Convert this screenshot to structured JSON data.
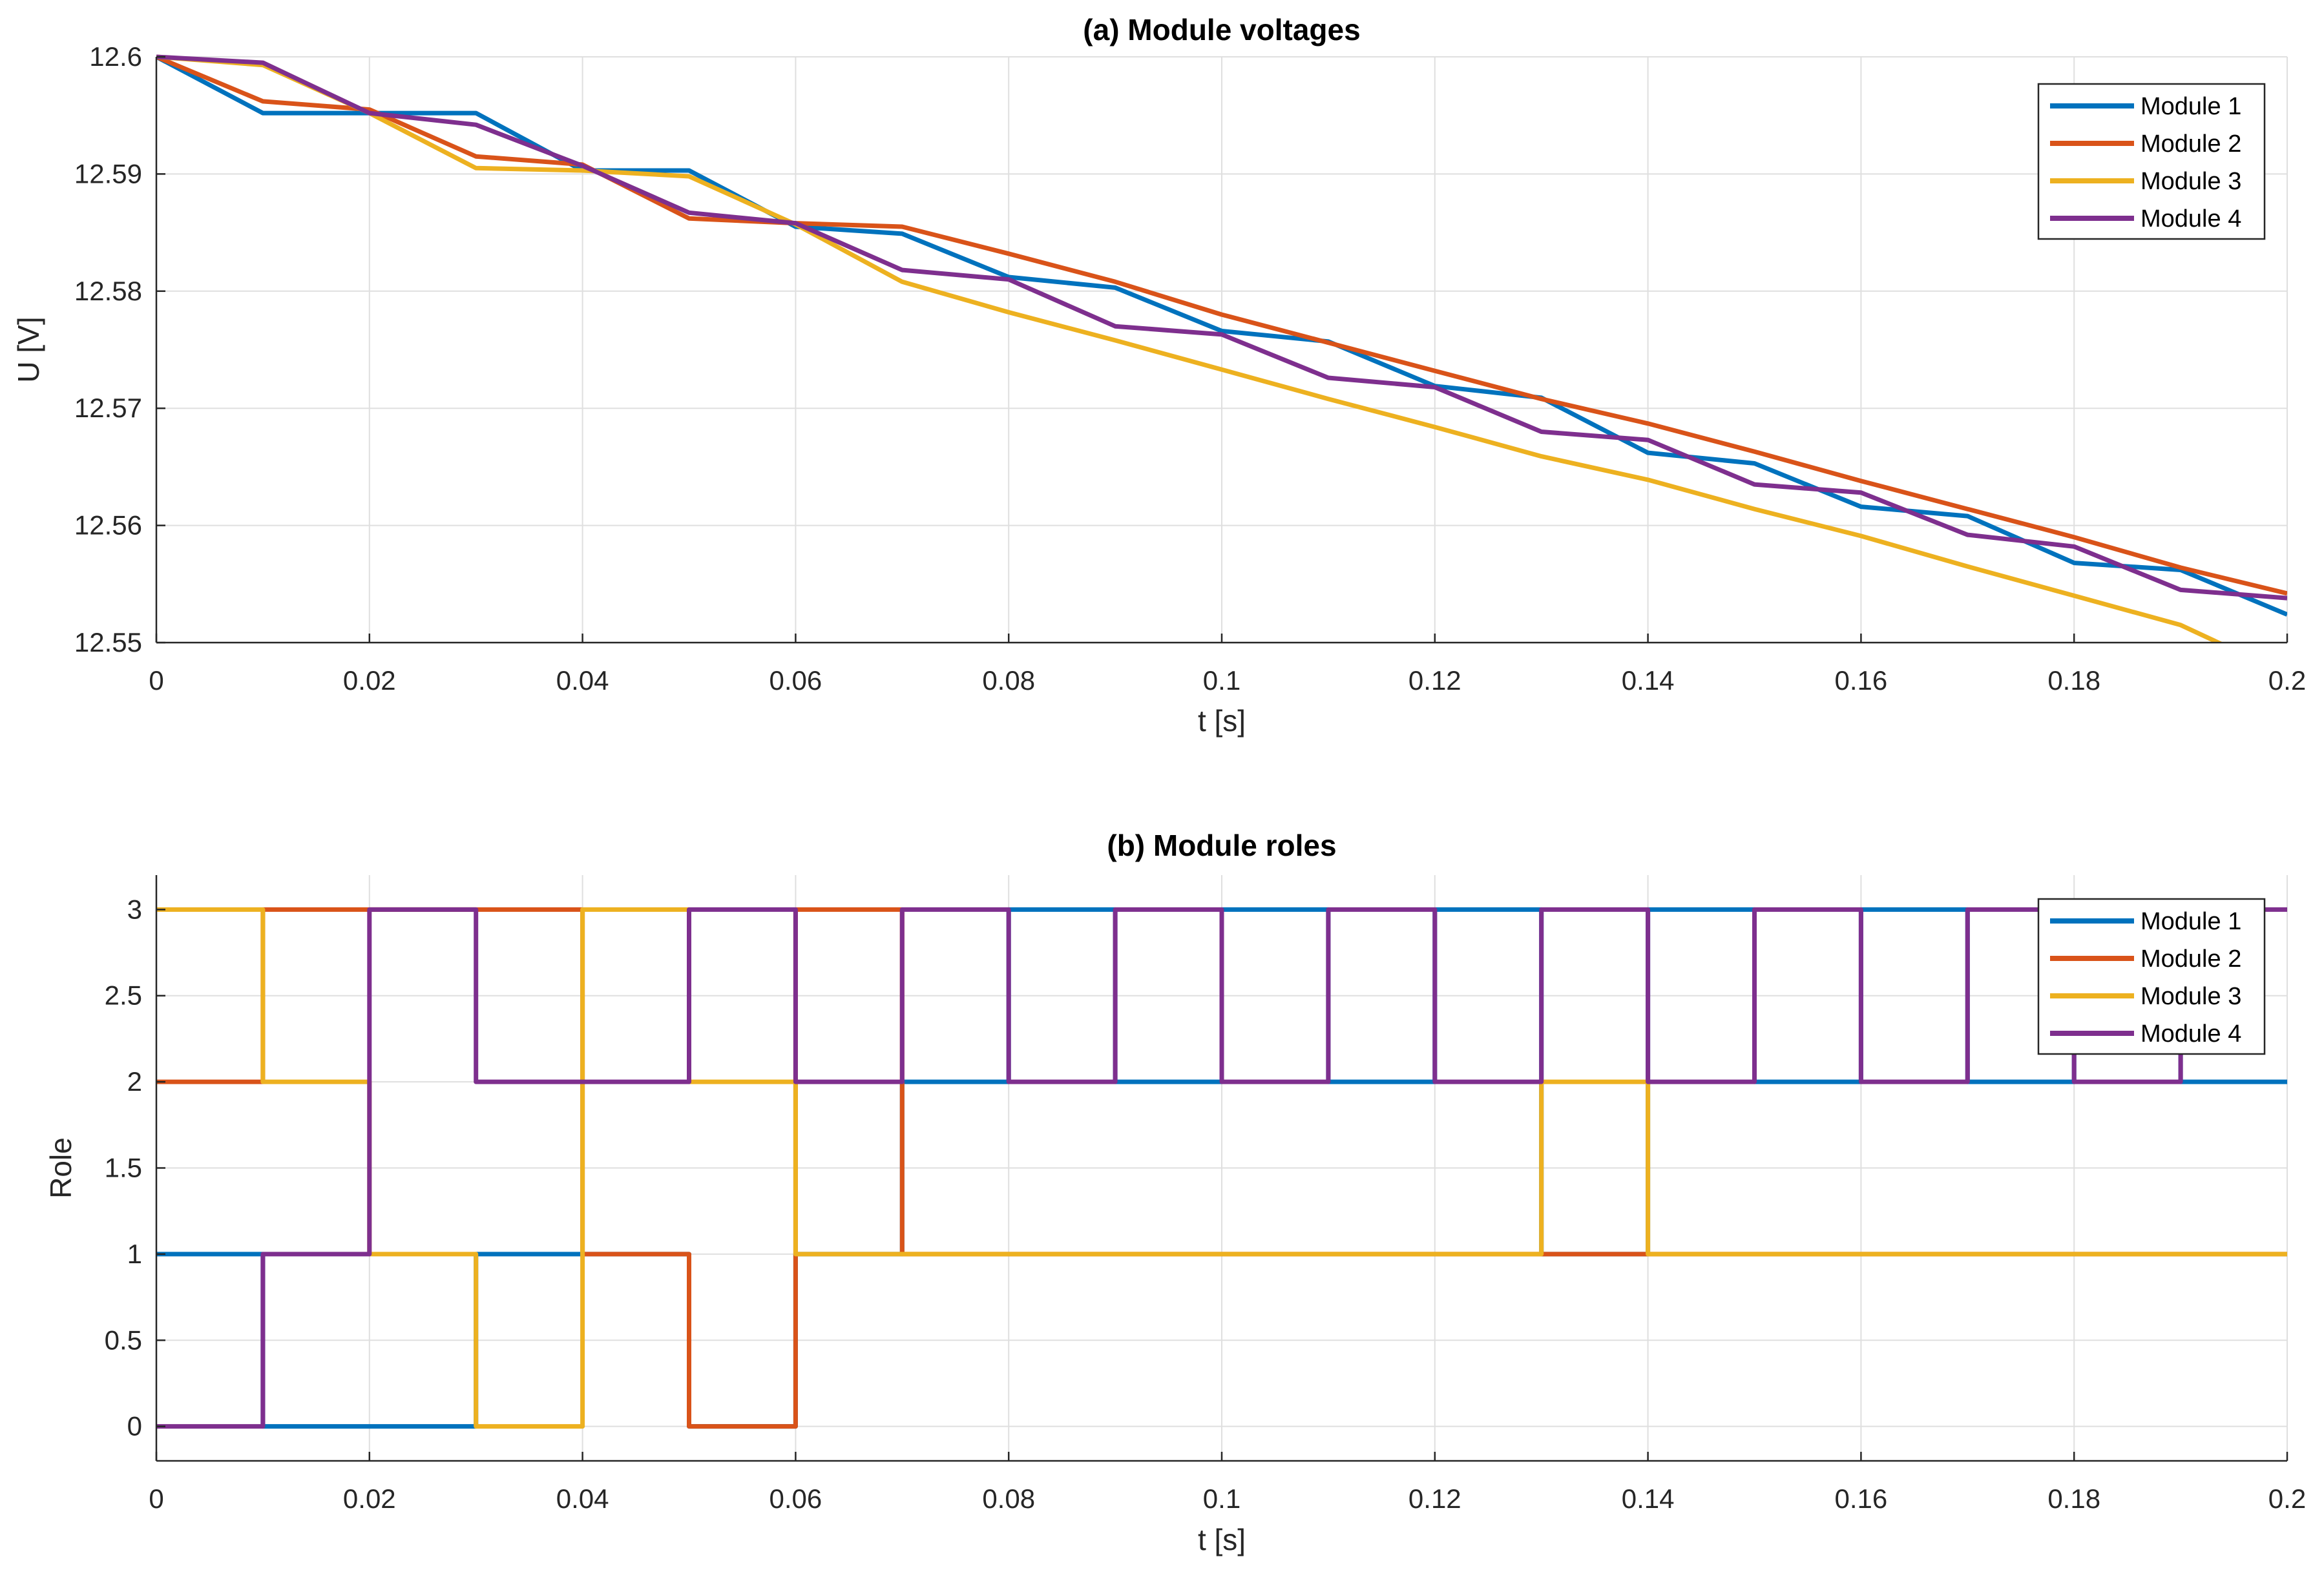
{
  "chart_data": [
    {
      "type": "line",
      "title": "(a) Module voltages",
      "xlabel": "t [s]",
      "ylabel": "U [V]",
      "xlim": [
        0,
        0.2
      ],
      "ylim": [
        12.55,
        12.6
      ],
      "xticks": [
        0,
        0.02,
        0.04,
        0.06,
        0.08,
        0.1,
        0.12,
        0.14,
        0.16,
        0.18,
        0.2
      ],
      "xtick_labels": [
        "0",
        "0.02",
        "0.04",
        "0.06",
        "0.08",
        "0.1",
        "0.12",
        "0.14",
        "0.16",
        "0.18",
        "0.2"
      ],
      "yticks": [
        12.55,
        12.56,
        12.57,
        12.58,
        12.59,
        12.6
      ],
      "ytick_labels": [
        "12.55",
        "12.56",
        "12.57",
        "12.58",
        "12.59",
        "12.6"
      ],
      "grid": true,
      "legend_position": "top-right",
      "series": [
        {
          "name": "Module 1",
          "color": "#0072BD",
          "x": [
            0,
            0.01,
            0.02,
            0.03,
            0.04,
            0.05,
            0.06,
            0.07,
            0.08,
            0.09,
            0.1,
            0.11,
            0.12,
            0.13,
            0.14,
            0.15,
            0.16,
            0.17,
            0.18,
            0.19,
            0.2
          ],
          "y": [
            12.6,
            12.5952,
            12.5952,
            12.5952,
            12.5903,
            12.5903,
            12.5855,
            12.5849,
            12.5812,
            12.5803,
            12.5766,
            12.5757,
            12.5719,
            12.5709,
            12.5662,
            12.5653,
            12.5616,
            12.5608,
            12.5568,
            12.5562,
            12.5524
          ]
        },
        {
          "name": "Module 2",
          "color": "#D95319",
          "x": [
            0,
            0.01,
            0.02,
            0.03,
            0.04,
            0.05,
            0.06,
            0.07,
            0.08,
            0.09,
            0.1,
            0.11,
            0.12,
            0.13,
            0.14,
            0.15,
            0.16,
            0.17,
            0.18,
            0.19,
            0.2
          ],
          "y": [
            12.6,
            12.5962,
            12.5955,
            12.5915,
            12.5908,
            12.5862,
            12.5858,
            12.5855,
            12.5832,
            12.5808,
            12.578,
            12.5756,
            12.5732,
            12.5708,
            12.5687,
            12.5663,
            12.5638,
            12.5614,
            12.559,
            12.5564,
            12.5542
          ]
        },
        {
          "name": "Module 3",
          "color": "#EDB120",
          "x": [
            0,
            0.01,
            0.02,
            0.03,
            0.04,
            0.05,
            0.06,
            0.07,
            0.08,
            0.09,
            0.1,
            0.11,
            0.12,
            0.13,
            0.14,
            0.15,
            0.16,
            0.17,
            0.18,
            0.19,
            0.194
          ],
          "y": [
            12.6,
            12.5993,
            12.5952,
            12.5905,
            12.5903,
            12.5898,
            12.5857,
            12.5808,
            12.5782,
            12.5758,
            12.5733,
            12.5708,
            12.5684,
            12.5659,
            12.5639,
            12.5614,
            12.5591,
            12.5565,
            12.554,
            12.5515,
            12.5498
          ]
        },
        {
          "name": "Module 4",
          "color": "#7E2F8E",
          "x": [
            0,
            0.01,
            0.02,
            0.03,
            0.04,
            0.05,
            0.06,
            0.07,
            0.08,
            0.09,
            0.1,
            0.11,
            0.12,
            0.13,
            0.14,
            0.15,
            0.16,
            0.17,
            0.18,
            0.19,
            0.2
          ],
          "y": [
            12.6,
            12.5995,
            12.5952,
            12.5942,
            12.5907,
            12.5867,
            12.5858,
            12.5818,
            12.581,
            12.577,
            12.5763,
            12.5726,
            12.5718,
            12.568,
            12.5673,
            12.5635,
            12.5628,
            12.5592,
            12.5582,
            12.5545,
            12.5538
          ]
        }
      ]
    },
    {
      "type": "line",
      "title": "(b) Module roles",
      "xlabel": "t [s]",
      "ylabel": "Role",
      "xlim": [
        0,
        0.2
      ],
      "ylim": [
        -0.2,
        3.2
      ],
      "xticks": [
        0,
        0.02,
        0.04,
        0.06,
        0.08,
        0.1,
        0.12,
        0.14,
        0.16,
        0.18,
        0.2
      ],
      "xtick_labels": [
        "0",
        "0.02",
        "0.04",
        "0.06",
        "0.08",
        "0.1",
        "0.12",
        "0.14",
        "0.16",
        "0.18",
        "0.2"
      ],
      "yticks": [
        0,
        0.5,
        1,
        1.5,
        2,
        2.5,
        3
      ],
      "ytick_labels": [
        "0",
        "0.5",
        "1",
        "1.5",
        "2",
        "2.5",
        "3"
      ],
      "grid": true,
      "legend_position": "top-right",
      "step_interval": 0.01,
      "series": [
        {
          "name": "Module 1",
          "color": "#0072BD",
          "values": [
            1,
            0,
            0,
            1,
            1,
            0,
            1,
            2,
            3,
            2,
            3,
            2,
            3,
            1,
            3,
            2,
            3,
            2,
            3,
            2
          ]
        },
        {
          "name": "Module 2",
          "color": "#D95319",
          "values": [
            2,
            3,
            3,
            3,
            1,
            0,
            3,
            1,
            1,
            1,
            1,
            1,
            1,
            1,
            1,
            1,
            1,
            1,
            1,
            1
          ]
        },
        {
          "name": "Module 3",
          "color": "#EDB120",
          "values": [
            3,
            2,
            1,
            0,
            3,
            2,
            1,
            1,
            1,
            1,
            1,
            1,
            1,
            2,
            1,
            1,
            1,
            1,
            1,
            1
          ]
        },
        {
          "name": "Module 4",
          "color": "#7E2F8E",
          "values": [
            0,
            1,
            3,
            2,
            2,
            3,
            2,
            3,
            2,
            3,
            2,
            3,
            2,
            3,
            2,
            3,
            2,
            3,
            2,
            3
          ]
        }
      ]
    }
  ]
}
